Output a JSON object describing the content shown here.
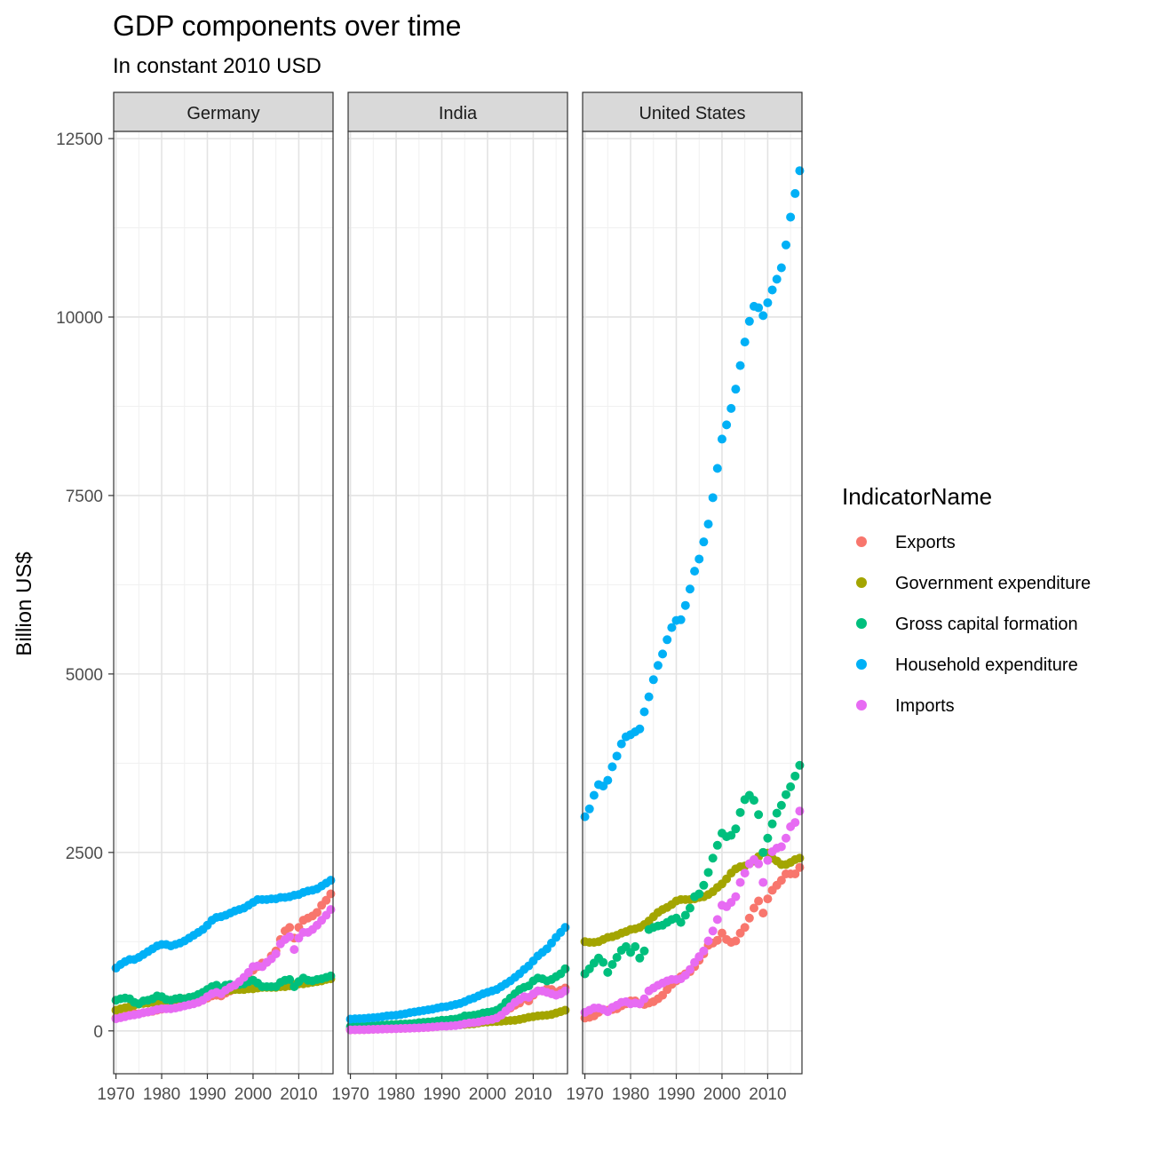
{
  "chart_data": {
    "type": "scatter",
    "title": "GDP components over time",
    "subtitle": "In constant 2010 USD",
    "xlabel": "",
    "ylabel": "Billion US$",
    "x_ticks": [
      1970,
      1980,
      1990,
      2000,
      2010
    ],
    "y_ticks": [
      0,
      2500,
      5000,
      7500,
      10000,
      12500
    ],
    "xlim": [
      1969.5,
      2017.5
    ],
    "ylim": [
      -600,
      12600
    ],
    "grid": true,
    "legend": {
      "title": "IndicatorName",
      "placement": "right",
      "entries": [
        "Exports",
        "Government expenditure",
        "Gross capital formation",
        "Household expenditure",
        "Imports"
      ]
    },
    "colors": {
      "Exports": "#F8766D",
      "Government expenditure": "#A3A500",
      "Gross capital formation": "#00BF7D",
      "Household expenditure": "#00B0F6",
      "Imports": "#E76BF3"
    },
    "x": [
      1970,
      1971,
      1972,
      1973,
      1974,
      1975,
      1976,
      1977,
      1978,
      1979,
      1980,
      1981,
      1982,
      1983,
      1984,
      1985,
      1986,
      1987,
      1988,
      1989,
      1990,
      1991,
      1992,
      1993,
      1994,
      1995,
      1996,
      1997,
      1998,
      1999,
      2000,
      2001,
      2002,
      2003,
      2004,
      2005,
      2006,
      2007,
      2008,
      2009,
      2010,
      2011,
      2012,
      2013,
      2014,
      2015,
      2016,
      2017
    ],
    "panels": [
      {
        "name": "Germany",
        "series": [
          {
            "name": "Exports",
            "values": [
              180,
              190,
              205,
              225,
              245,
              240,
              255,
              265,
              275,
              290,
              305,
              315,
              325,
              330,
              345,
              370,
              380,
              385,
              400,
              430,
              460,
              490,
              500,
              490,
              530,
              560,
              600,
              650,
              700,
              750,
              850,
              900,
              950,
              960,
              1050,
              1120,
              1280,
              1400,
              1450,
              1300,
              1450,
              1550,
              1580,
              1610,
              1660,
              1760,
              1830,
              1920
            ]
          },
          {
            "name": "Government expenditure",
            "values": [
              290,
              310,
              325,
              340,
              360,
              375,
              385,
              390,
              400,
              410,
              420,
              430,
              430,
              430,
              440,
              450,
              460,
              470,
              480,
              490,
              500,
              530,
              540,
              550,
              560,
              570,
              580,
              580,
              580,
              590,
              590,
              600,
              610,
              610,
              610,
              610,
              620,
              620,
              630,
              650,
              660,
              660,
              670,
              680,
              690,
              700,
              720,
              730
            ]
          },
          {
            "name": "Gross capital formation",
            "values": [
              430,
              450,
              460,
              450,
              400,
              380,
              420,
              430,
              450,
              490,
              480,
              440,
              430,
              450,
              460,
              450,
              470,
              480,
              510,
              540,
              580,
              620,
              640,
              600,
              640,
              650,
              640,
              650,
              660,
              690,
              710,
              670,
              620,
              620,
              620,
              620,
              680,
              710,
              720,
              620,
              690,
              740,
              710,
              700,
              720,
              730,
              750,
              770
            ]
          },
          {
            "name": "Household expenditure",
            "values": [
              880,
              930,
              970,
              1000,
              1000,
              1030,
              1070,
              1110,
              1150,
              1190,
              1210,
              1210,
              1190,
              1210,
              1230,
              1260,
              1300,
              1340,
              1380,
              1420,
              1480,
              1550,
              1590,
              1600,
              1620,
              1650,
              1680,
              1700,
              1720,
              1760,
              1800,
              1840,
              1840,
              1840,
              1850,
              1850,
              1870,
              1870,
              1880,
              1900,
              1910,
              1940,
              1960,
              1970,
              1990,
              2030,
              2070,
              2110
            ]
          },
          {
            "name": "Imports",
            "values": [
              170,
              185,
              200,
              215,
              225,
              235,
              255,
              265,
              280,
              300,
              310,
              310,
              310,
              320,
              335,
              350,
              365,
              380,
              400,
              430,
              480,
              520,
              540,
              520,
              570,
              610,
              640,
              690,
              750,
              820,
              900,
              910,
              900,
              960,
              1010,
              1080,
              1220,
              1280,
              1320,
              1140,
              1300,
              1380,
              1380,
              1420,
              1480,
              1550,
              1620,
              1700
            ]
          }
        ]
      },
      {
        "name": "India",
        "series": [
          {
            "name": "Exports",
            "values": [
              15,
              16,
              17,
              18,
              20,
              22,
              25,
              27,
              29,
              31,
              33,
              35,
              37,
              40,
              42,
              44,
              47,
              50,
              56,
              63,
              70,
              75,
              80,
              90,
              100,
              115,
              130,
              135,
              145,
              160,
              180,
              190,
              210,
              240,
              280,
              320,
              360,
              390,
              450,
              420,
              500,
              560,
              560,
              590,
              580,
              540,
              570,
              600
            ]
          },
          {
            "name": "Government expenditure",
            "values": [
              25,
              27,
              28,
              29,
              30,
              31,
              33,
              35,
              37,
              39,
              41,
              43,
              46,
              49,
              52,
              56,
              60,
              65,
              68,
              72,
              76,
              78,
              80,
              83,
              85,
              90,
              95,
              100,
              110,
              120,
              125,
              130,
              132,
              135,
              140,
              145,
              150,
              160,
              175,
              190,
              200,
              210,
              215,
              220,
              230,
              250,
              270,
              290
            ]
          },
          {
            "name": "Gross capital formation",
            "values": [
              60,
              62,
              62,
              65,
              68,
              72,
              75,
              80,
              85,
              88,
              90,
              95,
              97,
              100,
              105,
              115,
              120,
              125,
              130,
              140,
              150,
              150,
              160,
              165,
              180,
              210,
              210,
              220,
              230,
              250,
              260,
              270,
              290,
              330,
              400,
              460,
              520,
              580,
              610,
              630,
              700,
              740,
              730,
              700,
              720,
              760,
              800,
              870
            ]
          },
          {
            "name": "Household expenditure",
            "values": [
              165,
              170,
              172,
              175,
              180,
              185,
              190,
              200,
              210,
              215,
              220,
              230,
              240,
              255,
              265,
              275,
              285,
              295,
              305,
              320,
              335,
              340,
              355,
              370,
              385,
              410,
              440,
              460,
              490,
              520,
              540,
              560,
              580,
              620,
              660,
              700,
              750,
              800,
              860,
              910,
              980,
              1050,
              1100,
              1150,
              1230,
              1310,
              1380,
              1450
            ]
          },
          {
            "name": "Imports",
            "values": [
              15,
              16,
              17,
              18,
              20,
              22,
              24,
              26,
              28,
              30,
              32,
              34,
              36,
              38,
              40,
              43,
              46,
              50,
              55,
              60,
              65,
              65,
              70,
              75,
              85,
              100,
              110,
              115,
              125,
              140,
              150,
              160,
              180,
              220,
              280,
              340,
              400,
              440,
              480,
              470,
              520,
              560,
              560,
              540,
              520,
              500,
              520,
              560
            ]
          }
        ]
      },
      {
        "name": "United States",
        "series": [
          {
            "name": "Exports",
            "values": [
              180,
              190,
              210,
              260,
              300,
              290,
              300,
              310,
              350,
              380,
              420,
              420,
              380,
              370,
              390,
              410,
              450,
              500,
              580,
              650,
              700,
              760,
              800,
              830,
              900,
              990,
              1080,
              1200,
              1230,
              1270,
              1370,
              1280,
              1240,
              1260,
              1370,
              1450,
              1580,
              1720,
              1820,
              1650,
              1850,
              1970,
              2040,
              2110,
              2200,
              2200,
              2200,
              2290
            ]
          },
          {
            "name": "Government expenditure",
            "values": [
              1250,
              1240,
              1240,
              1250,
              1280,
              1310,
              1320,
              1340,
              1370,
              1390,
              1420,
              1430,
              1450,
              1490,
              1540,
              1600,
              1660,
              1700,
              1730,
              1770,
              1820,
              1840,
              1840,
              1840,
              1850,
              1870,
              1880,
              1910,
              1950,
              2010,
              2060,
              2130,
              2210,
              2270,
              2300,
              2310,
              2340,
              2380,
              2440,
              2500,
              2490,
              2420,
              2380,
              2330,
              2330,
              2360,
              2400,
              2420
            ]
          },
          {
            "name": "Gross capital formation",
            "values": [
              800,
              870,
              950,
              1020,
              960,
              820,
              930,
              1030,
              1130,
              1180,
              1100,
              1180,
              1020,
              1120,
              1420,
              1450,
              1470,
              1480,
              1520,
              1560,
              1580,
              1520,
              1620,
              1720,
              1880,
              1920,
              2040,
              2220,
              2420,
              2600,
              2770,
              2720,
              2740,
              2830,
              3060,
              3240,
              3300,
              3230,
              3030,
              2500,
              2700,
              2900,
              3050,
              3160,
              3310,
              3420,
              3570,
              3720
            ]
          },
          {
            "name": "Household expenditure",
            "values": [
              3000,
              3110,
              3300,
              3450,
              3430,
              3510,
              3700,
              3850,
              4020,
              4120,
              4150,
              4190,
              4230,
              4470,
              4680,
              4920,
              5120,
              5280,
              5480,
              5650,
              5750,
              5760,
              5960,
              6190,
              6440,
              6610,
              6850,
              7100,
              7470,
              7880,
              8290,
              8490,
              8720,
              8990,
              9320,
              9650,
              9940,
              10150,
              10130,
              10020,
              10200,
              10380,
              10530,
              10690,
              11010,
              11400,
              11730,
              12050
            ]
          },
          {
            "name": "Imports",
            "values": [
              260,
              290,
              320,
              320,
              300,
              270,
              330,
              360,
              400,
              410,
              380,
              390,
              380,
              450,
              560,
              600,
              640,
              670,
              700,
              720,
              720,
              730,
              780,
              860,
              960,
              1040,
              1120,
              1260,
              1400,
              1560,
              1760,
              1740,
              1800,
              1880,
              2080,
              2210,
              2340,
              2400,
              2340,
              2080,
              2390,
              2510,
              2560,
              2580,
              2700,
              2860,
              2920,
              3080
            ]
          }
        ]
      }
    ]
  }
}
